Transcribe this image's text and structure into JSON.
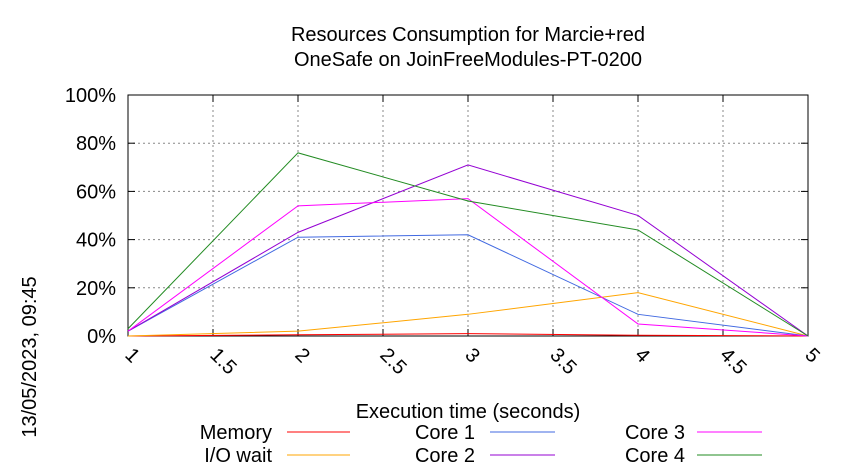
{
  "chart_data": {
    "type": "line",
    "title": "Resources Consumption for Marcie+red\nOneSafe on JoinFreeModules-PT-0200",
    "xlabel": "Execution time (seconds)",
    "ylabel": "",
    "timestamp": "13/05/2023, 09:45",
    "x": [
      1,
      2,
      3,
      4,
      5
    ],
    "xlim": [
      1,
      5
    ],
    "ylim": [
      0,
      100
    ],
    "xticks": [
      "1",
      "1.5",
      "2",
      "2.5",
      "3",
      "3.5",
      "4",
      "4.5",
      "5"
    ],
    "yticks": [
      "0%",
      "20%",
      "40%",
      "60%",
      "80%",
      "100%"
    ],
    "grid": true,
    "legend_position": "bottom",
    "series": [
      {
        "name": "Memory",
        "color": "#ff0000",
        "values": [
          0,
          0.5,
          1,
          0.3,
          0
        ]
      },
      {
        "name": "I/O wait",
        "color": "#ffa500",
        "values": [
          0,
          2,
          9,
          18,
          0
        ]
      },
      {
        "name": "Core 1",
        "color": "#4169e1",
        "values": [
          2,
          41,
          42,
          9,
          0
        ]
      },
      {
        "name": "Core 2",
        "color": "#9400d3",
        "values": [
          2,
          43,
          71,
          50,
          0
        ]
      },
      {
        "name": "Core 3",
        "color": "#ff00ff",
        "values": [
          2,
          54,
          57,
          5,
          0
        ]
      },
      {
        "name": "Core 4",
        "color": "#228b22",
        "values": [
          3,
          76,
          56,
          44,
          0
        ]
      }
    ]
  }
}
